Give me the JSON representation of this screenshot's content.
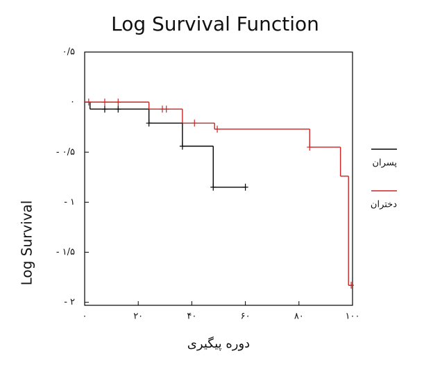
{
  "chart_data": {
    "type": "step",
    "title": "Log Survival Function",
    "x_label": "دوره پیگیری",
    "y_label": "Log Survival",
    "xlim": [
      0,
      100
    ],
    "ylim": [
      -2.03,
      0.5
    ],
    "xticks": [
      {
        "value": 0,
        "label": "۰"
      },
      {
        "value": 20,
        "label": "۲۰"
      },
      {
        "value": 40,
        "label": "۴۰"
      },
      {
        "value": 60,
        "label": "۶۰"
      },
      {
        "value": 80,
        "label": "۸۰"
      },
      {
        "value": 100,
        "label": "۱۰۰"
      }
    ],
    "yticks": [
      {
        "value": 0.5,
        "label": "۰/۵"
      },
      {
        "value": 0,
        "label": "۰"
      },
      {
        "value": -0.5,
        "label": "- ۰/۵"
      },
      {
        "value": -1,
        "label": "- ۱"
      },
      {
        "value": -1.5,
        "label": "- ۱/۵"
      },
      {
        "value": -2,
        "label": "- ۲"
      }
    ],
    "series": [
      {
        "name": "پسران",
        "color": "#000000",
        "x": [
          0,
          2,
          24,
          36.5,
          48,
          60
        ],
        "values": [
          0,
          -0.07,
          -0.21,
          -0.44,
          -0.85,
          -0.85
        ],
        "censored_x": [
          7.5,
          12.5,
          24,
          36.5,
          48,
          60
        ],
        "censored_values": [
          -0.07,
          -0.07,
          -0.21,
          -0.44,
          -0.85,
          -0.85
        ]
      },
      {
        "name": "دختران",
        "color": "#cc2222",
        "x": [
          0,
          24,
          36.5,
          48.5,
          84,
          95.5,
          98.5,
          100
        ],
        "values": [
          0,
          -0.07,
          -0.21,
          -0.27,
          -0.45,
          -0.74,
          -1.83,
          -1.83
        ],
        "censored_x": [
          1.5,
          7.5,
          12.5,
          29,
          30.5,
          41,
          49.5,
          84,
          99.5
        ],
        "censored_values": [
          0,
          0,
          0,
          -0.07,
          -0.07,
          -0.21,
          -0.27,
          -0.45,
          -1.83
        ]
      }
    ]
  }
}
